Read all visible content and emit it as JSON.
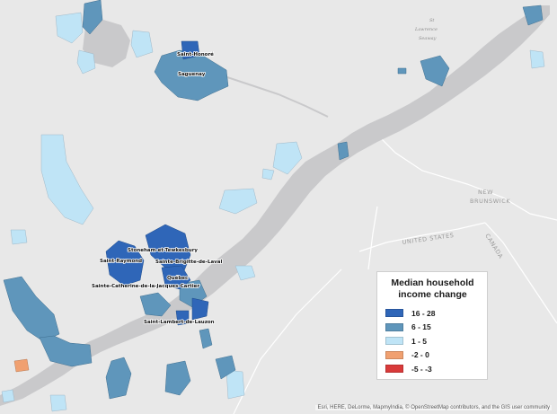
{
  "legend": {
    "title_line1": "Median household",
    "title_line2": "income change",
    "items": [
      {
        "label": "16 - 28",
        "color": "#2f66b8"
      },
      {
        "label": "6 - 15",
        "color": "#5f96bb"
      },
      {
        "label": "1 - 5",
        "color": "#bfe4f6"
      },
      {
        "label": "-2 - 0",
        "color": "#f0a070"
      },
      {
        "label": "-5 - -3",
        "color": "#d93a3a"
      }
    ]
  },
  "places": {
    "saint_honore": "Saint-Honoré",
    "saguenay": "Saguenay",
    "stoneham": "Stoneham-et-Tewkesbury",
    "saint_raymond": "Saint-Raymond",
    "sainte_brigitte": "Sainte-Brigitte-de-Laval",
    "quebec": "Québec",
    "sainte_catherine": "Sainte-Catherine-de-la-Jacques-Cartier",
    "saint_lambert": "Saint-Lambert-de-Lauzon"
  },
  "geo_labels": {
    "new_brunswick_1": "NEW",
    "new_brunswick_2": "BRUNSWICK",
    "united_states": "UNITED STATES",
    "canada": "CANADA",
    "st_lawrence_1": "St",
    "st_lawrence_2": "Lawrence",
    "st_lawrence_3": "Seaway"
  },
  "attribution": "Esri, HERE, DeLorme, MapmyIndia, © OpenStreetMap contributors, and the GIS user community"
}
